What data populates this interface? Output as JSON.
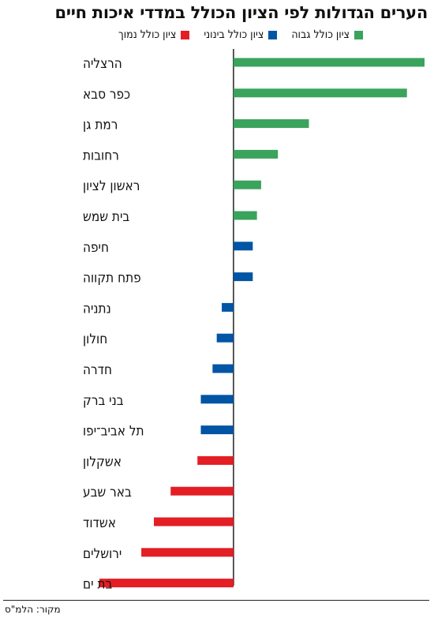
{
  "title": "הערים הגדולות לפי הציון הכולל במדדי איכות חיים",
  "source": "מקור: הלמ\"ס",
  "legend": [
    {
      "label": "ציון כולל גבוה",
      "color": "#3aa35c"
    },
    {
      "label": "ציון כולל בינוני",
      "color": "#0055a5"
    },
    {
      "label": "ציון כולל נמוך",
      "color": "#e31e24"
    }
  ],
  "chart_data": {
    "type": "bar",
    "orientation": "horizontal",
    "title": "הערים הגדולות לפי הציון הכולל במדדי איכות חיים",
    "categories": [
      "הרצליה",
      "כפר סבא",
      "רמת גן",
      "רחובות",
      "ראשון לציון",
      "בית שמש",
      "חיפה",
      "פתח תקווה",
      "נתניה",
      "חולון",
      "חדרה",
      "בני ברק",
      "תל אביב־יפו",
      "אשקלון",
      "באר שבע",
      "אשדוד",
      "ירושלים",
      "בת ים"
    ],
    "values": [
      2.28,
      2.07,
      0.9,
      0.53,
      0.33,
      0.28,
      0.23,
      0.23,
      -0.14,
      -0.2,
      -0.25,
      -0.39,
      -0.39,
      -0.43,
      -0.75,
      -0.95,
      -1.1,
      -1.6
    ],
    "groups": [
      "high",
      "high",
      "high",
      "high",
      "high",
      "high",
      "medium",
      "medium",
      "medium",
      "medium",
      "medium",
      "medium",
      "medium",
      "low",
      "low",
      "low",
      "low",
      "low"
    ],
    "group_colors": {
      "high": "#3aa35c",
      "medium": "#0055a5",
      "low": "#e31e24"
    },
    "xlim": [
      -1.6,
      2.28
    ],
    "axis_labels_shown": false,
    "grid": false
  }
}
